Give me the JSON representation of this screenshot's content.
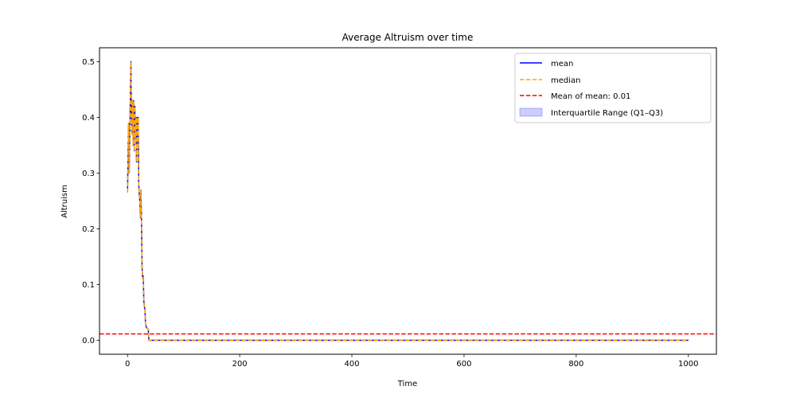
{
  "chart_data": {
    "type": "line",
    "title": "Average Altruism over time",
    "xlabel": "Time",
    "ylabel": "Altruism",
    "xlim": [
      -50,
      1050
    ],
    "ylim": [
      -0.025,
      0.525
    ],
    "xticks": [
      0,
      200,
      400,
      600,
      800,
      1000
    ],
    "yticks": [
      0.0,
      0.1,
      0.2,
      0.3,
      0.4,
      0.5
    ],
    "xtick_labels": [
      "0",
      "200",
      "400",
      "600",
      "800",
      "1000"
    ],
    "ytick_labels": [
      "0.0",
      "0.1",
      "0.2",
      "0.3",
      "0.4",
      "0.5"
    ],
    "grid": false,
    "legend_position": "top-right",
    "colors": {
      "mean": "#0000ff",
      "median": "#ffa500",
      "mean_of_mean": "#ff0000",
      "iqr": "#0000ff"
    },
    "series": [
      {
        "name": "mean",
        "style": "solid",
        "x": [
          0,
          1,
          2,
          3,
          4,
          5,
          6,
          7,
          8,
          9,
          10,
          11,
          12,
          13,
          14,
          15,
          16,
          17,
          18,
          19,
          20,
          21,
          22,
          23,
          24,
          25,
          26,
          27,
          28,
          29,
          30,
          31,
          32,
          33,
          34,
          35,
          36,
          37,
          38,
          39,
          40,
          1000
        ],
        "y": [
          0.265,
          0.33,
          0.39,
          0.3,
          0.36,
          0.44,
          0.5,
          0.4,
          0.37,
          0.43,
          0.35,
          0.43,
          0.34,
          0.42,
          0.36,
          0.4,
          0.32,
          0.4,
          0.35,
          0.4,
          0.28,
          0.26,
          0.25,
          0.22,
          0.27,
          0.21,
          0.13,
          0.11,
          0.115,
          0.07,
          0.06,
          0.055,
          0.03,
          0.025,
          0.022,
          0.022,
          0.02,
          0.02,
          0.0,
          0.0,
          0.0,
          0.0
        ]
      },
      {
        "name": "median",
        "style": "dashed",
        "x": [
          0,
          1,
          2,
          3,
          4,
          5,
          6,
          7,
          8,
          9,
          10,
          11,
          12,
          13,
          14,
          15,
          16,
          17,
          18,
          19,
          20,
          21,
          22,
          23,
          24,
          25,
          26,
          27,
          28,
          29,
          30,
          31,
          32,
          33,
          34,
          35,
          36,
          37,
          38,
          39,
          40,
          1000
        ],
        "y": [
          0.265,
          0.33,
          0.39,
          0.3,
          0.36,
          0.44,
          0.5,
          0.4,
          0.37,
          0.43,
          0.35,
          0.43,
          0.34,
          0.42,
          0.36,
          0.4,
          0.32,
          0.4,
          0.35,
          0.4,
          0.28,
          0.26,
          0.25,
          0.22,
          0.27,
          0.21,
          0.13,
          0.11,
          0.115,
          0.07,
          0.06,
          0.055,
          0.03,
          0.025,
          0.022,
          0.022,
          0.02,
          0.02,
          0.0,
          0.0,
          0.0,
          0.0
        ]
      }
    ],
    "hline": {
      "name": "Mean of mean: 0.01",
      "y": 0.0115,
      "style": "dashed"
    },
    "band": {
      "name": "Interquartile Range (Q1–Q3)"
    },
    "legend": [
      {
        "label": "mean",
        "kind": "line-solid",
        "color": "#0000ff"
      },
      {
        "label": "median",
        "kind": "line-dashed",
        "color": "#ffa500"
      },
      {
        "label": "Mean of mean: 0.01",
        "kind": "line-dashed",
        "color": "#ff0000"
      },
      {
        "label": "Interquartile Range (Q1–Q3)",
        "kind": "patch",
        "color": "#0000ff"
      }
    ]
  }
}
